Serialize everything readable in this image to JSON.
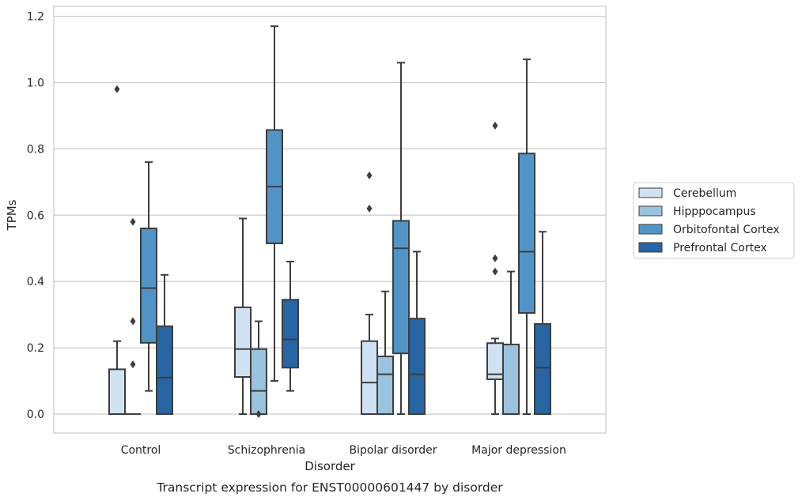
{
  "caption": "Transcript expression for ENST00000601447 by disorder",
  "chart_data": {
    "type": "box",
    "title": "",
    "xlabel": "Disorder",
    "ylabel": "TPMs",
    "ylim": [
      -0.055,
      1.235
    ],
    "yticks": [
      0.0,
      0.2,
      0.4,
      0.6,
      0.8,
      1.0,
      1.2
    ],
    "ytick_labels": [
      "0.0",
      "0.2",
      "0.4",
      "0.6",
      "0.8",
      "1.0",
      "1.2"
    ],
    "grid": "horizontal",
    "legend_position": "right",
    "categories": [
      "Control",
      "Schizophrenia",
      "Bipolar disorder",
      "Major depression"
    ],
    "series": [
      {
        "name": "Cerebellum",
        "color": "#d0e1f2",
        "boxes": [
          {
            "category": "Control",
            "whisker_low": 0.0,
            "q1": 0.0,
            "median": 0.0,
            "q3": 0.135,
            "whisker_high": 0.22,
            "outliers": [
              0.98
            ]
          },
          {
            "category": "Schizophrenia",
            "whisker_low": 0.0,
            "q1": 0.112,
            "median": 0.196,
            "q3": 0.322,
            "whisker_high": 0.59,
            "outliers": []
          },
          {
            "category": "Bipolar disorder",
            "whisker_low": 0.0,
            "q1": 0.0,
            "median": 0.095,
            "q3": 0.22,
            "whisker_high": 0.3,
            "outliers": [
              0.62,
              0.72
            ]
          },
          {
            "category": "Major depression",
            "whisker_low": 0.0,
            "q1": 0.105,
            "median": 0.12,
            "q3": 0.214,
            "whisker_high": 0.228,
            "outliers": [
              0.43,
              0.47,
              0.87
            ]
          }
        ]
      },
      {
        "name": "Hipppocampus",
        "color": "#9ac3de",
        "boxes": [
          {
            "category": "Control",
            "whisker_low": 0.0,
            "q1": 0.0,
            "median": 0.0,
            "q3": 0.0,
            "whisker_high": 0.0,
            "outliers": [
              0.15,
              0.28,
              0.58
            ]
          },
          {
            "category": "Schizophrenia",
            "whisker_low": 0.0,
            "q1": 0.0,
            "median": 0.07,
            "q3": 0.196,
            "whisker_high": 0.28,
            "outliers": [
              0.0
            ]
          },
          {
            "category": "Bipolar disorder",
            "whisker_low": 0.0,
            "q1": 0.0,
            "median": 0.12,
            "q3": 0.174,
            "whisker_high": 0.37,
            "outliers": []
          },
          {
            "category": "Major depression",
            "whisker_low": 0.0,
            "q1": 0.0,
            "median": 0.0,
            "q3": 0.21,
            "whisker_high": 0.43,
            "outliers": []
          }
        ]
      },
      {
        "name": "Orbitofontal Cortex",
        "color": "#5195c8",
        "boxes": [
          {
            "category": "Control",
            "whisker_low": 0.07,
            "q1": 0.215,
            "median": 0.38,
            "q3": 0.56,
            "whisker_high": 0.76,
            "outliers": []
          },
          {
            "category": "Schizophrenia",
            "whisker_low": 0.1,
            "q1": 0.515,
            "median": 0.686,
            "q3": 0.857,
            "whisker_high": 1.17,
            "outliers": []
          },
          {
            "category": "Bipolar disorder",
            "whisker_low": 0.0,
            "q1": 0.183,
            "median": 0.5,
            "q3": 0.583,
            "whisker_high": 1.06,
            "outliers": []
          },
          {
            "category": "Major depression",
            "whisker_low": 0.0,
            "q1": 0.305,
            "median": 0.49,
            "q3": 0.786,
            "whisker_high": 1.07,
            "outliers": []
          }
        ]
      },
      {
        "name": "Prefrontal Cortex",
        "color": "#2765a4",
        "boxes": [
          {
            "category": "Control",
            "whisker_low": 0.0,
            "q1": 0.0,
            "median": 0.11,
            "q3": 0.265,
            "whisker_high": 0.42,
            "outliers": []
          },
          {
            "category": "Schizophrenia",
            "whisker_low": 0.07,
            "q1": 0.14,
            "median": 0.225,
            "q3": 0.345,
            "whisker_high": 0.46,
            "outliers": []
          },
          {
            "category": "Bipolar disorder",
            "whisker_low": 0.0,
            "q1": 0.0,
            "median": 0.12,
            "q3": 0.288,
            "whisker_high": 0.49,
            "outliers": []
          },
          {
            "category": "Major depression",
            "whisker_low": 0.0,
            "q1": 0.0,
            "median": 0.14,
            "q3": 0.272,
            "whisker_high": 0.55,
            "outliers": []
          }
        ]
      }
    ]
  }
}
